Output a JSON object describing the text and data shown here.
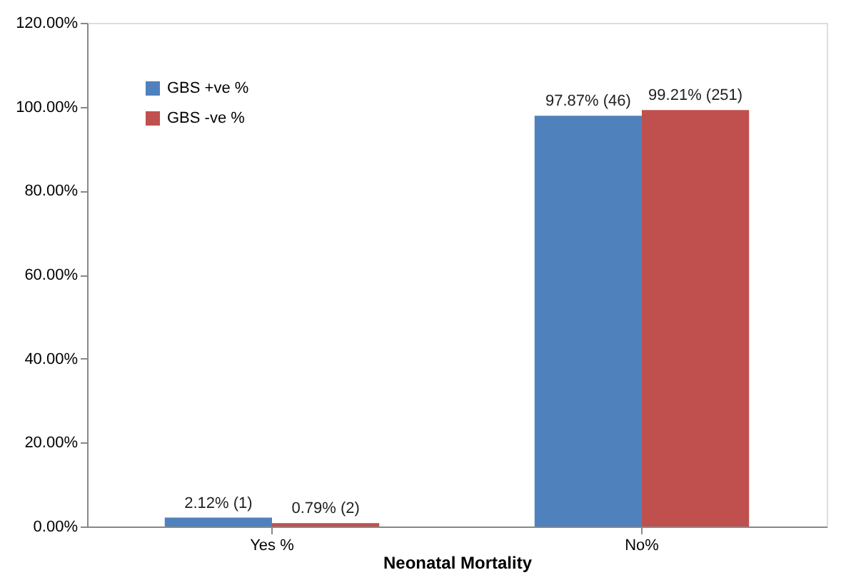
{
  "chart_data": {
    "type": "bar",
    "xlabel": "Neonatal Mortality",
    "categories": [
      "Yes %",
      "No%"
    ],
    "series": [
      {
        "name": "GBS +ve %",
        "color": "#4f81bd",
        "values": [
          2.12,
          97.87
        ],
        "value_labels": [
          "2.12% (1)",
          "97.87% (46)"
        ]
      },
      {
        "name": "GBS -ve %",
        "color": "#c0504d",
        "values": [
          0.79,
          99.21
        ],
        "value_labels": [
          "0.79% (2)",
          "99.21% (251)"
        ]
      }
    ],
    "ylim": [
      0,
      120
    ],
    "yticks": [
      {
        "value": 0,
        "label": "0.00%"
      },
      {
        "value": 20,
        "label": "20.00%"
      },
      {
        "value": 40,
        "label": "40.00%"
      },
      {
        "value": 60,
        "label": "60.00%"
      },
      {
        "value": 80,
        "label": "80.00%"
      },
      {
        "value": 100,
        "label": "100.00%"
      },
      {
        "value": 120,
        "label": "120.00%"
      }
    ],
    "grid": false,
    "legend": "top left"
  }
}
